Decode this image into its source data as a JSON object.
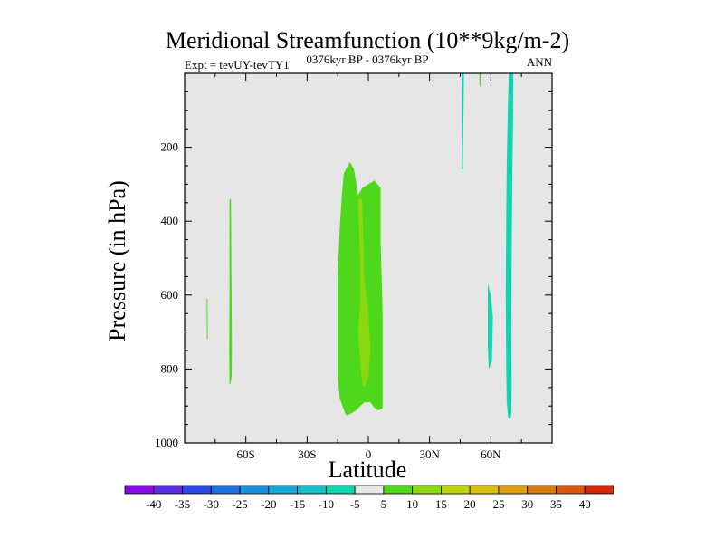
{
  "chart_data": {
    "type": "heatmap",
    "title": "Meridional Streamfunction (10**9kg/m-2)",
    "subtitle_left": "Expt = tevUY-tevTY1",
    "subtitle_center": "0376kyr BP - 0376kyr BP",
    "subtitle_right": "ANN",
    "xlabel": "Latitude",
    "ylabel": "Pressure (in hPa)",
    "xlim": [
      -90,
      90
    ],
    "ylim": [
      1000,
      0
    ],
    "x_ticks": [
      {
        "value": -60,
        "label": "60S"
      },
      {
        "value": -30,
        "label": "30S"
      },
      {
        "value": 0,
        "label": "0"
      },
      {
        "value": 30,
        "label": "30N"
      },
      {
        "value": 60,
        "label": "60N"
      }
    ],
    "y_ticks": [
      {
        "value": 200,
        "label": "200"
      },
      {
        "value": 400,
        "label": "400"
      },
      {
        "value": 600,
        "label": "600"
      },
      {
        "value": 800,
        "label": "800"
      },
      {
        "value": 1000,
        "label": "1000"
      }
    ],
    "background_color": "#e6e6e6",
    "colorbar": {
      "labels": [
        "-40",
        "-35",
        "-30",
        "-25",
        "-20",
        "-15",
        "-10",
        "-5",
        "5",
        "10",
        "15",
        "20",
        "25",
        "30",
        "35",
        "40"
      ],
      "colors": [
        "#8a0ae6",
        "#5a2ee0",
        "#2c48e3",
        "#1f6fe0",
        "#1a8fdc",
        "#16a9d8",
        "#12c2c8",
        "#10d6b0",
        "#e6e6e6",
        "#4ed81c",
        "#8cd80e",
        "#bcd40c",
        "#d8c010",
        "#dca010",
        "#d87c10",
        "#d8560e",
        "#d42a0a"
      ]
    },
    "regions": [
      {
        "level": "5 to 10",
        "color": "#4ed81c",
        "polygon": [
          [
            -11,
            925
          ],
          [
            -14,
            880
          ],
          [
            -15,
            820
          ],
          [
            -15,
            700
          ],
          [
            -15,
            550
          ],
          [
            -14,
            420
          ],
          [
            -13,
            330
          ],
          [
            -12,
            270
          ],
          [
            -9,
            240
          ],
          [
            -7,
            260
          ],
          [
            -5,
            330
          ],
          [
            -3,
            310
          ],
          [
            0,
            300
          ],
          [
            3,
            290
          ],
          [
            6,
            310
          ],
          [
            6,
            450
          ],
          [
            7,
            650
          ],
          [
            7,
            800
          ],
          [
            7,
            905
          ],
          [
            5,
            912
          ],
          [
            3,
            905
          ],
          [
            1,
            890
          ],
          [
            -2,
            890
          ],
          [
            -4,
            900
          ],
          [
            -6,
            912
          ],
          [
            -9,
            922
          ]
        ]
      },
      {
        "level": "10 to 15",
        "color": "#8cd80e",
        "polygon": [
          [
            -5,
            340
          ],
          [
            -3,
            340
          ],
          [
            -2,
            560
          ],
          [
            0,
            640
          ],
          [
            1,
            750
          ],
          [
            0,
            820
          ],
          [
            -2,
            850
          ],
          [
            -3,
            840
          ],
          [
            -4,
            780
          ],
          [
            -5,
            700
          ],
          [
            -4,
            620
          ],
          [
            -4,
            520
          ]
        ]
      },
      {
        "level": "5 to 10",
        "color": "#4ed81c",
        "polygon": [
          [
            -68,
            340
          ],
          [
            -67.3,
            340
          ],
          [
            -67,
            600
          ],
          [
            -66.8,
            750
          ],
          [
            -67,
            820
          ],
          [
            -67.5,
            840
          ],
          [
            -68,
            840
          ],
          [
            -68.2,
            750
          ],
          [
            -68,
            600
          ]
        ]
      },
      {
        "level": "5 to 10",
        "color": "#4ed81c",
        "polygon": [
          [
            -79.2,
            610
          ],
          [
            -78.8,
            610
          ],
          [
            -78.7,
            720
          ],
          [
            -79.1,
            720
          ]
        ]
      },
      {
        "level": "5 to 10",
        "color": "#4ed81c",
        "polygon": [
          [
            54.4,
            0
          ],
          [
            55,
            0
          ],
          [
            54.9,
            35
          ],
          [
            54.5,
            35
          ]
        ]
      },
      {
        "level": "-10 to -5",
        "color": "#10d6b0",
        "polygon": [
          [
            45.8,
            0
          ],
          [
            46.8,
            0
          ],
          [
            46.5,
            150
          ],
          [
            46.3,
            260
          ],
          [
            45.8,
            260
          ],
          [
            45.9,
            150
          ]
        ]
      },
      {
        "level": "-10 to -5",
        "color": "#10d6b0",
        "polygon": [
          [
            58.5,
            570
          ],
          [
            60,
            600
          ],
          [
            61,
            660
          ],
          [
            60.5,
            780
          ],
          [
            59,
            800
          ],
          [
            58.5,
            740
          ],
          [
            58.5,
            640
          ]
        ]
      },
      {
        "level": "-10 to -5",
        "color": "#10d6b0",
        "polygon": [
          [
            69,
            0
          ],
          [
            71,
            0
          ],
          [
            70.8,
            150
          ],
          [
            70.5,
            300
          ],
          [
            70.2,
            500
          ],
          [
            70,
            700
          ],
          [
            70.2,
            850
          ],
          [
            70,
            920
          ],
          [
            69.5,
            935
          ],
          [
            68.5,
            932
          ],
          [
            67.8,
            890
          ],
          [
            67.5,
            800
          ],
          [
            67.3,
            600
          ],
          [
            67.5,
            400
          ],
          [
            67.8,
            250
          ],
          [
            68.3,
            100
          ],
          [
            68.8,
            0
          ]
        ]
      }
    ]
  }
}
